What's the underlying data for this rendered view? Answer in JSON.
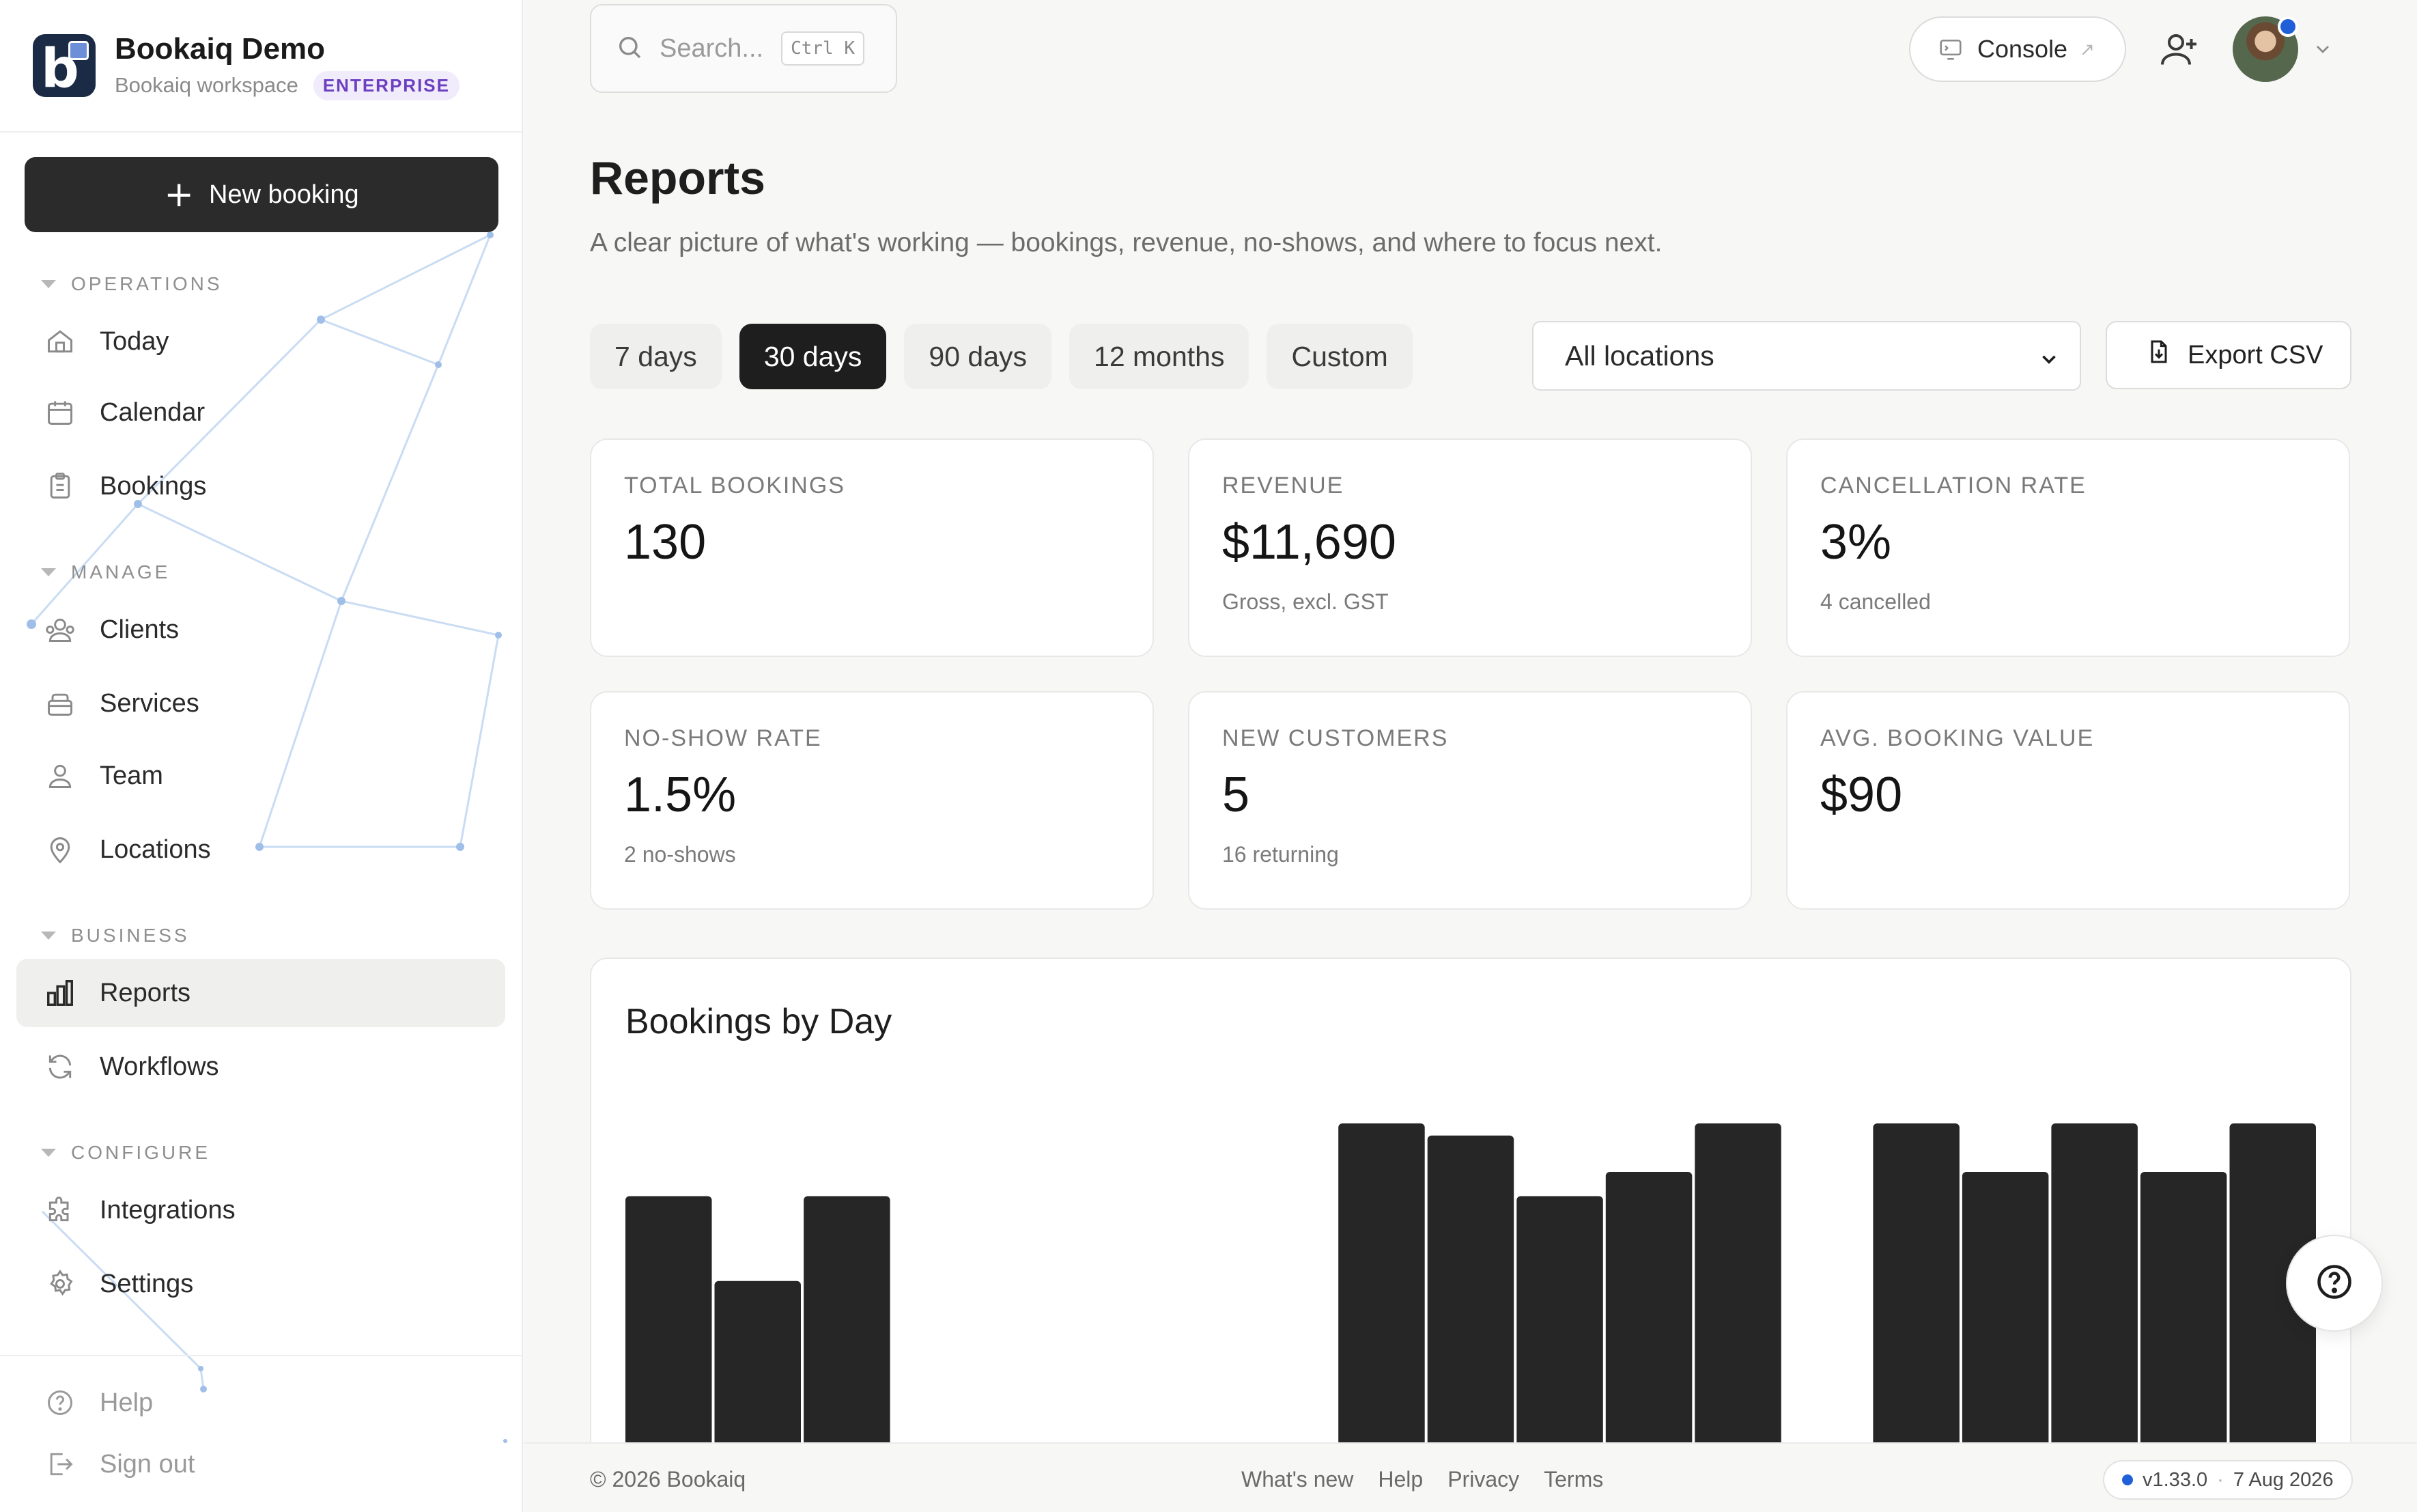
{
  "brand": {
    "name": "Bookaiq Demo",
    "workspace": "Bookaiq workspace",
    "tier_badge": "ENTERPRISE"
  },
  "sidebar": {
    "new_booking_label": "New booking",
    "sections": {
      "operations": "OPERATIONS",
      "manage": "MANAGE",
      "business": "BUSINESS",
      "configure": "CONFIGURE"
    },
    "items": {
      "today": "Today",
      "calendar": "Calendar",
      "bookings": "Bookings",
      "clients": "Clients",
      "services": "Services",
      "team": "Team",
      "locations": "Locations",
      "reports": "Reports",
      "workflows": "Workflows",
      "integrations": "Integrations",
      "settings": "Settings",
      "help": "Help",
      "sign_out": "Sign out"
    },
    "active_item": "Reports"
  },
  "topbar": {
    "search_placeholder": "Search...",
    "search_shortcut": "Ctrl K",
    "console_label": "Console",
    "notification_dot_color": "#1f5fd8"
  },
  "page": {
    "title": "Reports",
    "subtitle": "A clear picture of what's working — bookings, revenue, no-shows, and where to focus next."
  },
  "filters": {
    "ranges": [
      "7 days",
      "30 days",
      "90 days",
      "12 months",
      "Custom"
    ],
    "selected_range": "30 days",
    "location": "All locations",
    "export_label": "Export CSV"
  },
  "metrics": {
    "total_bookings": {
      "label": "TOTAL BOOKINGS",
      "value": "130",
      "note": ""
    },
    "revenue": {
      "label": "REVENUE",
      "value": "$11,690",
      "note": "Gross, excl. GST"
    },
    "cancellation_rate": {
      "label": "CANCELLATION RATE",
      "value": "3%",
      "note": "4 cancelled"
    },
    "no_show_rate": {
      "label": "NO-SHOW RATE",
      "value": "1.5%",
      "note": "2 no-shows"
    },
    "new_customers": {
      "label": "NEW CUSTOMERS",
      "value": "5",
      "note": "16 returning"
    },
    "avg_booking_value": {
      "label": "AVG. BOOKING VALUE",
      "value": "$90",
      "note": ""
    }
  },
  "chart_data": {
    "type": "bar",
    "title": "Bookings by Day",
    "xlabel": "",
    "ylabel": "",
    "values": [
      6,
      4.6,
      6,
      0,
      0,
      0,
      0.05,
      0.5,
      7.2,
      7,
      6,
      6.4,
      7.2,
      0,
      7.2,
      6.4,
      7.2,
      6.4,
      7.2
    ],
    "ylim": [
      0,
      8
    ],
    "bar_color": "#262626",
    "grid": false
  },
  "footer": {
    "copyright": "© 2026 Bookaiq",
    "links": [
      "What's new",
      "Help",
      "Privacy",
      "Terms"
    ],
    "version": "v1.33.0",
    "build_date": "7 Aug 2026"
  }
}
